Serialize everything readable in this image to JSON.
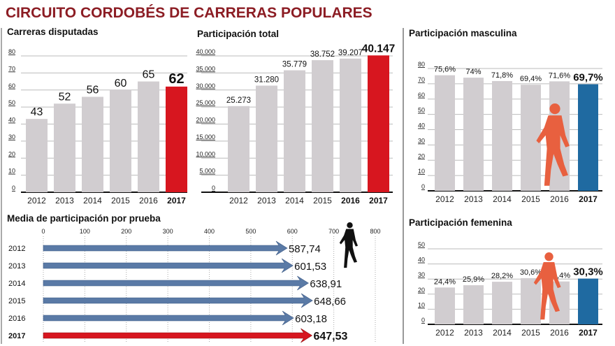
{
  "title": "CIRCUITO CORDOBÉS DE CARRERAS POPULARES",
  "colors": {
    "title": "#8c1d24",
    "bar": "#d1cdd0",
    "highlight_red": "#d7161f",
    "highlight_blue": "#1f6aa1",
    "arrow_blue": "#5a7aa6",
    "runner_orange": "#e8603f",
    "runner_black": "#111111"
  },
  "chart_data": [
    {
      "type": "bar",
      "title": "Carreras disputadas",
      "categories": [
        "2012",
        "2013",
        "2014",
        "2015",
        "2016",
        "2017"
      ],
      "values": [
        43,
        52,
        56,
        60,
        65,
        62
      ],
      "labels": [
        "43",
        "52",
        "56",
        "60",
        "65",
        "62"
      ],
      "highlight": "2017",
      "highlight_color": "#d7161f",
      "yticks": [
        "0",
        "10",
        "20",
        "30",
        "40",
        "50",
        "60",
        "70",
        "80"
      ],
      "ylim": [
        0,
        80
      ],
      "grid": true
    },
    {
      "type": "bar",
      "title": "Participación total",
      "categories": [
        "2012",
        "2013",
        "2014",
        "2015",
        "2016",
        "2017"
      ],
      "values": [
        25273,
        31280,
        35779,
        38752,
        39207,
        40147
      ],
      "labels": [
        "25.273",
        "31.280",
        "35.779",
        "38.752",
        "39.207",
        "40.147"
      ],
      "highlight": "2017",
      "highlight_color": "#d7161f",
      "bold_categories": [
        "2016",
        "2017"
      ],
      "yticks": [
        "0",
        "5.000",
        "10.000",
        "15.000",
        "20.000",
        "25.000",
        "30.000",
        "35.000",
        "40.000"
      ],
      "ylim": [
        0,
        40000
      ],
      "grid": true
    },
    {
      "type": "bar",
      "title": "Participación masculina",
      "categories": [
        "2012",
        "2013",
        "2014",
        "2015",
        "2016",
        "2017"
      ],
      "values": [
        75.6,
        74,
        71.8,
        69.4,
        71.6,
        69.7
      ],
      "labels": [
        "75,6%",
        "74%",
        "71,8%",
        "69,4%",
        "71,6%",
        "69,7%"
      ],
      "highlight": "2017",
      "highlight_color": "#1f6aa1",
      "yticks": [
        "0",
        "10",
        "20",
        "30",
        "40",
        "50",
        "60",
        "70",
        "80"
      ],
      "ylim": [
        0,
        80
      ],
      "grid": true
    },
    {
      "type": "bar",
      "title": "Participación femenina",
      "categories": [
        "2012",
        "2013",
        "2014",
        "2015",
        "2016",
        "2017"
      ],
      "values": [
        24.4,
        25.9,
        28.2,
        30.6,
        28.4,
        30.3
      ],
      "labels": [
        "24,4%",
        "25,9%",
        "28,2%",
        "30,6%",
        "28,4%",
        "30,3%"
      ],
      "highlight": "2017",
      "highlight_color": "#1f6aa1",
      "yticks": [
        "0",
        "10",
        "20",
        "30",
        "40",
        "50"
      ],
      "ylim": [
        0,
        50
      ],
      "grid": true
    },
    {
      "type": "bar",
      "orientation": "horizontal",
      "title": "Media de participación por prueba",
      "categories": [
        "2012",
        "2013",
        "2014",
        "2015",
        "2016",
        "2017"
      ],
      "values": [
        587.74,
        601.53,
        638.91,
        648.66,
        603.18,
        647.53
      ],
      "labels": [
        "587,74",
        "601,53",
        "638,91",
        "648,66",
        "603,18",
        "647,53"
      ],
      "highlight": "2017",
      "highlight_color": "#d7161f",
      "xticks": [
        "0",
        "100",
        "200",
        "300",
        "400",
        "500",
        "600",
        "700",
        "800"
      ],
      "xlim": [
        0,
        800
      ],
      "grid": true
    }
  ]
}
